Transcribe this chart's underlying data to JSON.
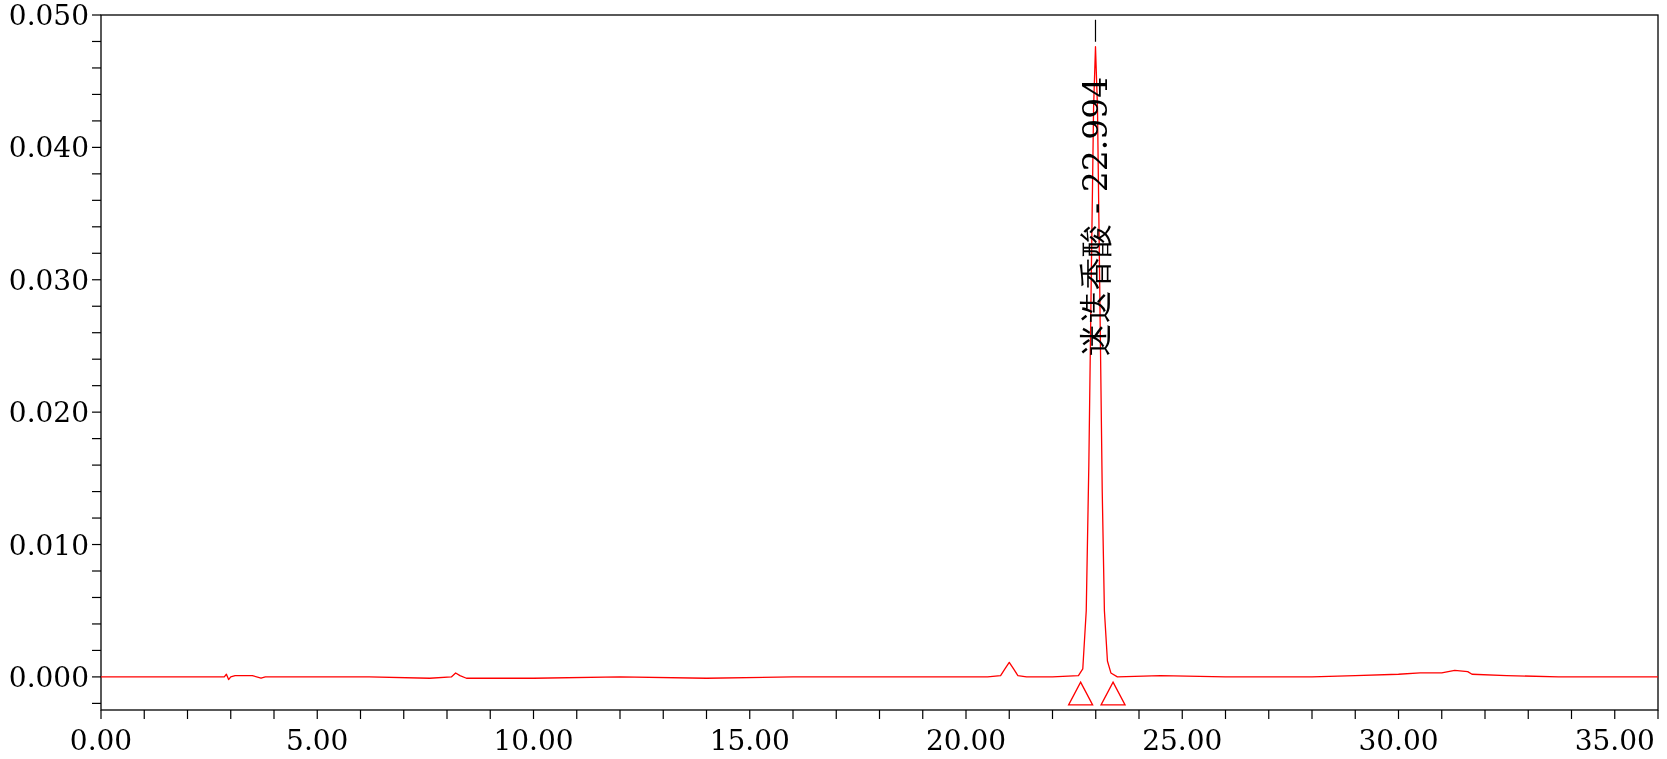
{
  "chart_data": {
    "type": "line",
    "grid": false,
    "marker": "none",
    "line_style": "solid",
    "x": [
      0,
      2.85,
      2.9,
      2.95,
      3.0,
      3.1,
      3.5,
      3.7,
      3.8,
      6.2,
      7.6,
      8.1,
      8.2,
      8.3,
      8.45,
      8.7,
      10,
      12,
      14,
      16,
      18,
      19.5,
      20.5,
      20.8,
      20.9,
      21.0,
      21.1,
      21.2,
      21.4,
      22.0,
      22.6,
      22.7,
      22.78,
      22.84,
      22.9,
      22.95,
      22.994,
      23.04,
      23.09,
      23.15,
      23.2,
      23.27,
      23.35,
      23.5,
      24.5,
      26,
      28,
      29,
      30,
      30.5,
      31.0,
      31.3,
      31.6,
      31.7,
      32.5,
      33.7,
      36
    ],
    "series": [
      {
        "color": "#ff0000",
        "values": [
          0,
          0,
          0.0002,
          -0.0002,
          0,
          0.0001,
          0.0001,
          -0.0001,
          0,
          0,
          -0.0001,
          0,
          0.0003,
          0.0001,
          -0.0001,
          -0.0001,
          -0.0001,
          0,
          -0.0001,
          0,
          0,
          0,
          0,
          0.0001,
          0.0006,
          0.0011,
          0.0006,
          0.0001,
          0,
          0,
          0.0001,
          0.0006,
          0.005,
          0.016,
          0.031,
          0.043,
          0.0476,
          0.043,
          0.03,
          0.014,
          0.005,
          0.0012,
          0.0003,
          0,
          0.0001,
          0,
          0,
          0.0001,
          0.0002,
          0.0003,
          0.0003,
          0.0005,
          0.0004,
          0.0002,
          0.0001,
          0,
          0
        ]
      },
      {
        "type": "scatter",
        "marker": "triangle",
        "color": "#ff0000",
        "x": [
          22.65,
          23.4
        ],
        "values": [
          -0.0013,
          -0.0013
        ]
      }
    ],
    "xlim": [
      0,
      36
    ],
    "ylim": [
      -0.0025,
      0.05
    ],
    "xticks": [
      {
        "value": 0,
        "label": "0.00"
      },
      {
        "value": 1,
        "label": null
      },
      {
        "value": 2,
        "label": null
      },
      {
        "value": 3,
        "label": null
      },
      {
        "value": 4,
        "label": null
      },
      {
        "value": 5,
        "label": "5.00"
      },
      {
        "value": 6,
        "label": null
      },
      {
        "value": 7,
        "label": null
      },
      {
        "value": 8,
        "label": null
      },
      {
        "value": 9,
        "label": null
      },
      {
        "value": 10,
        "label": "10.00"
      },
      {
        "value": 11,
        "label": null
      },
      {
        "value": 12,
        "label": null
      },
      {
        "value": 13,
        "label": null
      },
      {
        "value": 14,
        "label": null
      },
      {
        "value": 15,
        "label": "15.00"
      },
      {
        "value": 16,
        "label": null
      },
      {
        "value": 17,
        "label": null
      },
      {
        "value": 18,
        "label": null
      },
      {
        "value": 19,
        "label": null
      },
      {
        "value": 20,
        "label": "20.00"
      },
      {
        "value": 21,
        "label": null
      },
      {
        "value": 22,
        "label": null
      },
      {
        "value": 23,
        "label": null
      },
      {
        "value": 24,
        "label": null
      },
      {
        "value": 25,
        "label": "25.00"
      },
      {
        "value": 26,
        "label": null
      },
      {
        "value": 27,
        "label": null
      },
      {
        "value": 28,
        "label": null
      },
      {
        "value": 29,
        "label": null
      },
      {
        "value": 30,
        "label": "30.00"
      },
      {
        "value": 31,
        "label": null
      },
      {
        "value": 32,
        "label": null
      },
      {
        "value": 33,
        "label": null
      },
      {
        "value": 34,
        "label": null
      },
      {
        "value": 35,
        "label": "35.00"
      },
      {
        "value": 36,
        "label": null
      }
    ],
    "yticks": [
      {
        "value": -0.002,
        "label": null
      },
      {
        "value": 0,
        "label": "0.000"
      },
      {
        "value": 0.002,
        "label": null
      },
      {
        "value": 0.004,
        "label": null
      },
      {
        "value": 0.006,
        "label": null
      },
      {
        "value": 0.008,
        "label": null
      },
      {
        "value": 0.01,
        "label": "0.010"
      },
      {
        "value": 0.012,
        "label": null
      },
      {
        "value": 0.014,
        "label": null
      },
      {
        "value": 0.016,
        "label": null
      },
      {
        "value": 0.018,
        "label": null
      },
      {
        "value": 0.02,
        "label": "0.020"
      },
      {
        "value": 0.022,
        "label": null
      },
      {
        "value": 0.024,
        "label": null
      },
      {
        "value": 0.026,
        "label": null
      },
      {
        "value": 0.028,
        "label": null
      },
      {
        "value": 0.03,
        "label": "0.030"
      },
      {
        "value": 0.032,
        "label": null
      },
      {
        "value": 0.034,
        "label": null
      },
      {
        "value": 0.036,
        "label": null
      },
      {
        "value": 0.038,
        "label": null
      },
      {
        "value": 0.04,
        "label": "0.040"
      },
      {
        "value": 0.042,
        "label": null
      },
      {
        "value": 0.044,
        "label": null
      },
      {
        "value": 0.046,
        "label": null
      },
      {
        "value": 0.048,
        "label": null
      },
      {
        "value": 0.05,
        "label": "0.050"
      }
    ],
    "annotations": [
      {
        "text": "迷迭香酸 - 22.994",
        "x": 22.994,
        "y": 0.0476
      }
    ]
  }
}
